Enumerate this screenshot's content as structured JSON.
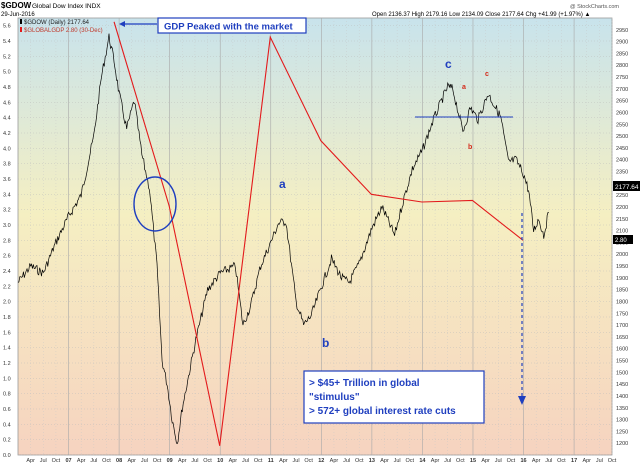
{
  "header": {
    "symbol": "$GDOW",
    "description": "Global Dow Index  INDX",
    "date": "29-Jun-2016",
    "ohlc": "Open 2136.37   High 2179.16   Low 2134.09   Close 2177.64   Chg +41.99 (+1.97%) ▲",
    "watermark": "@ StockCharts.com",
    "legend_primary": "$GDOW (Daily) 2177.64",
    "legend_secondary": "$GLOBALGDP 2.80 (30-Dec)"
  },
  "colors": {
    "price": "#000000",
    "gdp": "#e31a1c",
    "annotation": "#1f3fbf",
    "wave_red": "#d42a1a"
  },
  "annotations": {
    "gdp_box": "GDP Peaked with the market",
    "stimulus_line1": "> $45+ Trillion in global",
    "stimulus_line2": "\"stimulus\"",
    "stimulus_line3": "> 572+ global interest rate cuts",
    "wave_a": "a",
    "wave_b": "b",
    "wave_c": "c",
    "wave_small_a": "a",
    "wave_small_b": "b",
    "wave_small_c": "c"
  },
  "chart_data": {
    "type": "line",
    "title": "$GDOW Global Dow Index INDX",
    "left_axis": {
      "label": "$GLOBALGDP",
      "range": [
        0.0,
        5.7
      ],
      "ticks": [
        0.0,
        0.2,
        0.4,
        0.6,
        0.8,
        1.0,
        1.2,
        1.4,
        1.6,
        1.8,
        2.0,
        2.2,
        2.4,
        2.6,
        2.8,
        3.0,
        3.2,
        3.4,
        3.6,
        3.8,
        4.0,
        4.2,
        4.4,
        4.6,
        4.8,
        5.0,
        5.2,
        5.4,
        5.6
      ]
    },
    "right_axis": {
      "label": "$GDOW",
      "range": [
        1150,
        3000
      ],
      "ticks": [
        1200,
        1250,
        1300,
        1350,
        1400,
        1450,
        1500,
        1550,
        1600,
        1650,
        1700,
        1750,
        1800,
        1850,
        1900,
        1950,
        2000,
        2050,
        2100,
        2150,
        2200,
        2250,
        2300,
        2350,
        2400,
        2450,
        2500,
        2550,
        2600,
        2650,
        2700,
        2750,
        2800,
        2850,
        2900,
        2950
      ]
    },
    "last_labels": {
      "gdow": "2177.64",
      "gdp": "2.80"
    },
    "x_labels": [
      "Apr",
      "Jul",
      "Oct",
      "07",
      "Apr",
      "Jul",
      "Oct",
      "08",
      "Apr",
      "Jul",
      "Oct",
      "09",
      "Apr",
      "Jul",
      "Oct",
      "10",
      "Apr",
      "Jul",
      "Oct",
      "11",
      "Apr",
      "Jul",
      "Oct",
      "12",
      "Apr",
      "Jul",
      "Oct",
      "13",
      "Apr",
      "Jul",
      "Oct",
      "14",
      "Apr",
      "Jul",
      "Oct",
      "15",
      "Apr",
      "Jul",
      "Oct",
      "16",
      "Apr",
      "Jul",
      "Oct",
      "17",
      "Apr",
      "Jul",
      "Oct"
    ],
    "x_range": [
      2006.0,
      2017.75
    ],
    "series": [
      {
        "name": "$GDOW (Daily) 2177.64",
        "axis": "right",
        "x": [
          2006.0,
          2006.25,
          2006.5,
          2006.75,
          2007.0,
          2007.25,
          2007.5,
          2007.65,
          2007.8,
          2007.9,
          2008.0,
          2008.15,
          2008.3,
          2008.45,
          2008.6,
          2008.75,
          2008.85,
          2008.95,
          2009.05,
          2009.15,
          2009.25,
          2009.5,
          2009.75,
          2010.0,
          2010.3,
          2010.45,
          2010.6,
          2010.8,
          2011.0,
          2011.15,
          2011.3,
          2011.5,
          2011.65,
          2011.8,
          2011.95,
          2012.2,
          2012.4,
          2012.55,
          2012.75,
          2013.0,
          2013.2,
          2013.45,
          2013.6,
          2013.8,
          2014.0,
          2014.2,
          2014.4,
          2014.5,
          2014.6,
          2014.8,
          2014.95,
          2015.1,
          2015.3,
          2015.45,
          2015.55,
          2015.7,
          2015.85,
          2016.0,
          2016.1,
          2016.2,
          2016.3,
          2016.4,
          2016.5
        ],
        "y": [
          1880,
          1950,
          1920,
          2050,
          2160,
          2250,
          2500,
          2750,
          2920,
          2820,
          2680,
          2530,
          2650,
          2420,
          2280,
          1950,
          1550,
          1450,
          1300,
          1200,
          1350,
          1620,
          1850,
          1920,
          1950,
          1700,
          1780,
          1950,
          2050,
          2130,
          2140,
          1800,
          1700,
          1740,
          1830,
          1980,
          1900,
          1880,
          1960,
          2110,
          2200,
          2080,
          2210,
          2360,
          2440,
          2560,
          2660,
          2710,
          2700,
          2520,
          2620,
          2570,
          2680,
          2620,
          2580,
          2390,
          2400,
          2340,
          2270,
          2100,
          2150,
          2080,
          2177.64
        ]
      },
      {
        "name": "$GLOBALGDP 2.80 (30-Dec)",
        "axis": "left",
        "x": [
          2007.9,
          2008.99,
          2009.99,
          2010.99,
          2011.99,
          2012.99,
          2013.99,
          2014.99,
          2015.99
        ],
        "y": [
          5.65,
          3.25,
          0.12,
          5.45,
          4.1,
          3.4,
          3.3,
          3.32,
          2.8
        ]
      }
    ]
  }
}
